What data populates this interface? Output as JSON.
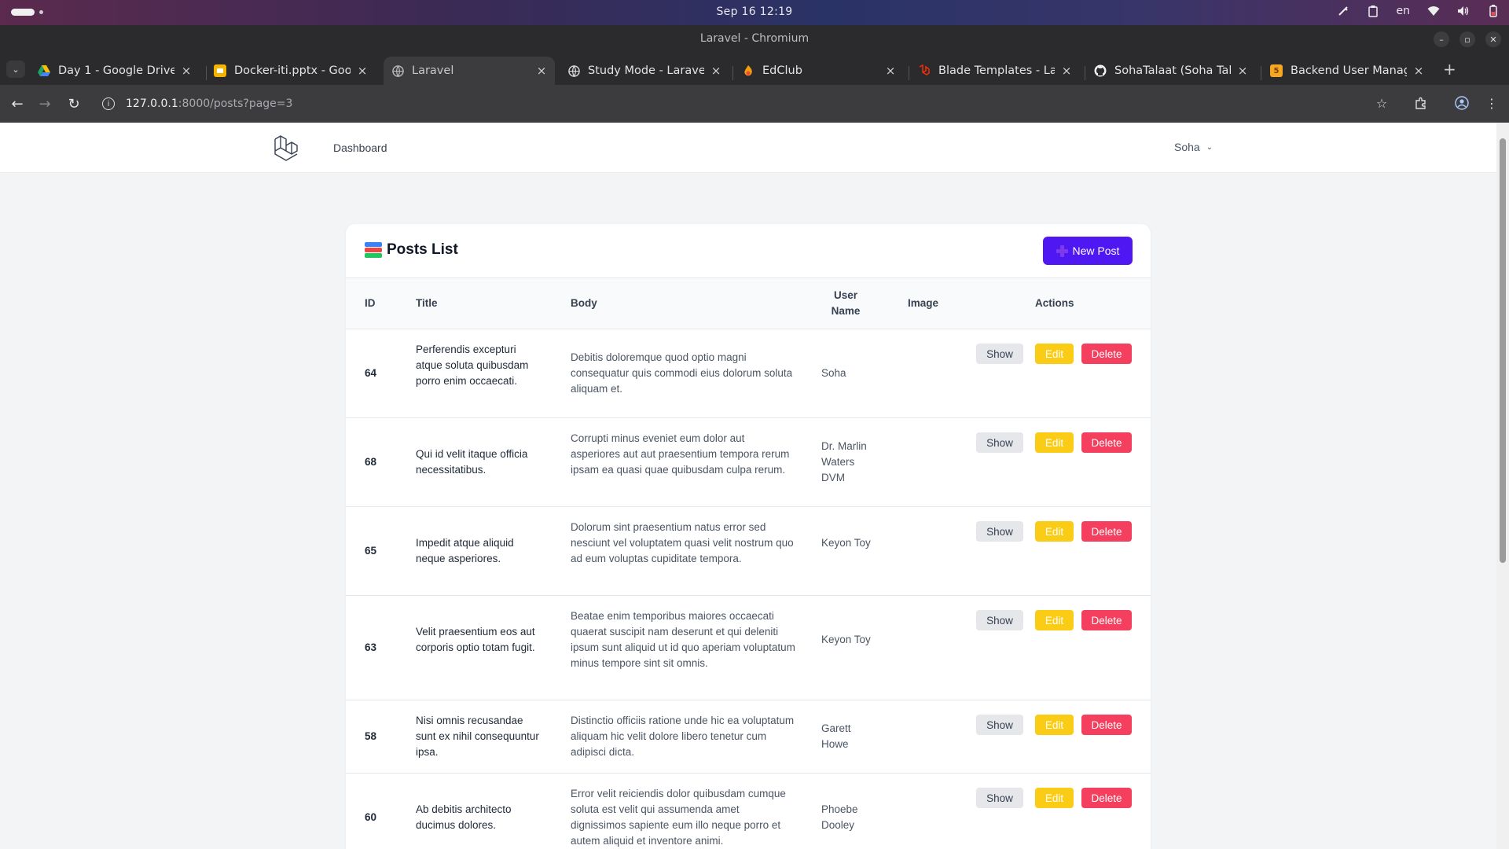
{
  "os": {
    "datetime": "Sep 16  12:19",
    "lang": "en"
  },
  "window": {
    "title": "Laravel - Chromium"
  },
  "tabs": [
    {
      "label": "Day 1 - Google Drive",
      "icon": "google-drive-icon"
    },
    {
      "label": "Docker-iti.pptx - Googl",
      "icon": "slides-icon"
    },
    {
      "label": "Laravel",
      "icon": "globe-icon",
      "active": true
    },
    {
      "label": "Study Mode - Laravel d",
      "icon": "globe-icon"
    },
    {
      "label": "EdClub",
      "icon": "edclub-icon"
    },
    {
      "label": "Blade Templates - Lara",
      "icon": "laravel-icon"
    },
    {
      "label": "SohaTalaat (Soha Talaa",
      "icon": "github-icon"
    },
    {
      "label": "Backend User Manage",
      "icon": "html5-icon"
    }
  ],
  "address": {
    "host": "127.0.0.1",
    "rest": ":8000/posts?page=3"
  },
  "nav": {
    "dashboard": "Dashboard",
    "user": "Soha"
  },
  "card": {
    "title": "Posts List",
    "new_post": "New Post"
  },
  "table": {
    "headers": {
      "id": "ID",
      "title": "Title",
      "body": "Body",
      "user_line1": "User",
      "user_line2": "Name",
      "image": "Image",
      "actions": "Actions"
    },
    "actions": {
      "show": "Show",
      "edit": "Edit",
      "delete": "Delete"
    },
    "rows": [
      {
        "id": "64",
        "title": "Perferendis excepturi atque soluta quibusdam porro enim occaecati.",
        "body": "Debitis doloremque quod optio magni consequatur quis commodi eius dolorum soluta aliquam et.",
        "user": "Soha"
      },
      {
        "id": "68",
        "title": "Qui id velit itaque officia necessitatibus.",
        "body": "Corrupti minus eveniet eum dolor aut asperiores aut aut praesentium tempora rerum ipsam ea quasi quae quibusdam culpa rerum.",
        "user": "Dr. Marlin Waters DVM"
      },
      {
        "id": "65",
        "title": "Impedit atque aliquid neque asperiores.",
        "body": "Dolorum sint praesentium natus error sed nesciunt vel voluptatem quasi velit nostrum quo ad eum voluptas cupiditate tempora.",
        "user": "Keyon Toy"
      },
      {
        "id": "63",
        "title": "Velit praesentium eos aut corporis optio totam fugit.",
        "body": "Beatae enim temporibus maiores occaecati quaerat suscipit nam deserunt et qui deleniti ipsum sunt aliquid ut id quo aperiam voluptatum minus tempore sint sit omnis.",
        "user": "Keyon Toy"
      },
      {
        "id": "58",
        "title": "Nisi omnis recusandae sunt ex nihil consequuntur ipsa.",
        "body": "Distinctio officiis ratione unde hic ea voluptatum aliquam hic velit dolore libero tenetur cum adipisci dicta.",
        "user": "Garett Howe"
      },
      {
        "id": "60",
        "title": "Ab debitis architecto ducimus dolores.",
        "body": "Error velit reiciendis dolor quibusdam cumque soluta est velit qui assumenda amet dignissimos sapiente eum illo neque porro et autem aliquid et inventore animi.",
        "user": "Phoebe Dooley"
      }
    ]
  },
  "colors": {
    "primary": "#4f17f2",
    "edit": "#facc15",
    "delete": "#f43f5e"
  }
}
